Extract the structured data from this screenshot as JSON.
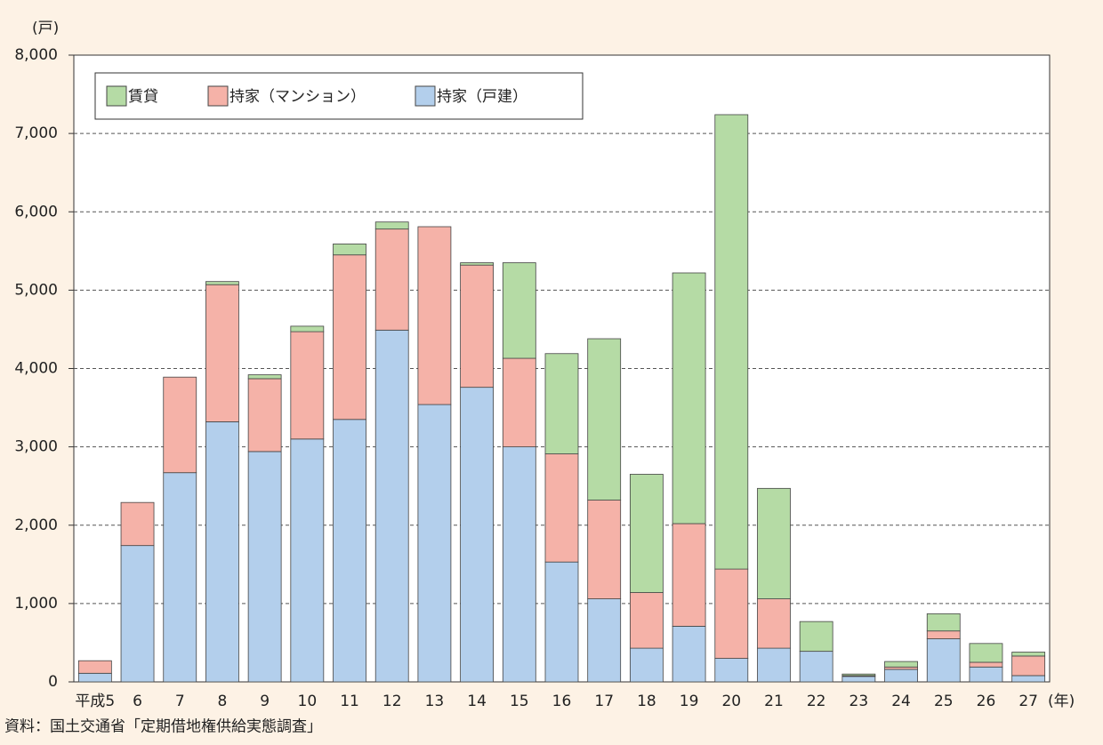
{
  "chart_data": {
    "type": "stacked_bar",
    "unit_label": "(戸)",
    "x_unit_label": "(年)",
    "source": "資料：国土交通省「定期借地権供給実態調査」",
    "categories": [
      "平成5",
      "6",
      "7",
      "8",
      "9",
      "10",
      "11",
      "12",
      "13",
      "14",
      "15",
      "16",
      "17",
      "18",
      "19",
      "20",
      "21",
      "22",
      "23",
      "24",
      "25",
      "26",
      "27"
    ],
    "series": [
      {
        "name": "賃貸",
        "color": "#b5dba5",
        "values": [
          0,
          0,
          0,
          40,
          50,
          70,
          140,
          90,
          0,
          30,
          1220,
          1280,
          2060,
          1510,
          3200,
          5800,
          1410,
          380,
          20,
          70,
          220,
          240,
          50
        ]
      },
      {
        "name": "持家（マンション）",
        "color": "#f5b2a8",
        "values": [
          160,
          550,
          1220,
          1750,
          930,
          1370,
          2100,
          1290,
          2270,
          1560,
          1130,
          1380,
          1260,
          710,
          1310,
          1140,
          630,
          0,
          10,
          30,
          100,
          60,
          250
        ]
      },
      {
        "name": "持家（戸建）",
        "color": "#b3cfec",
        "values": [
          110,
          1740,
          2670,
          3320,
          2940,
          3100,
          3350,
          4490,
          3540,
          3760,
          3000,
          1530,
          1060,
          430,
          710,
          300,
          430,
          390,
          70,
          160,
          550,
          190,
          80
        ]
      }
    ],
    "ylim": [
      0,
      8000
    ],
    "yticks": [
      0,
      {
        "value": 1000,
        "label": "1,000"
      },
      {
        "value": 2000,
        "label": "2,000"
      },
      {
        "value": 3000,
        "label": "3,000"
      },
      {
        "value": 4000,
        "label": "4,000"
      },
      {
        "value": 5000,
        "label": "5,000"
      },
      {
        "value": 6000,
        "label": "6,000"
      },
      {
        "value": 7000,
        "label": "7,000"
      },
      {
        "value": 8000,
        "label": "8,000"
      }
    ],
    "grid": true,
    "legend": "top-left"
  }
}
